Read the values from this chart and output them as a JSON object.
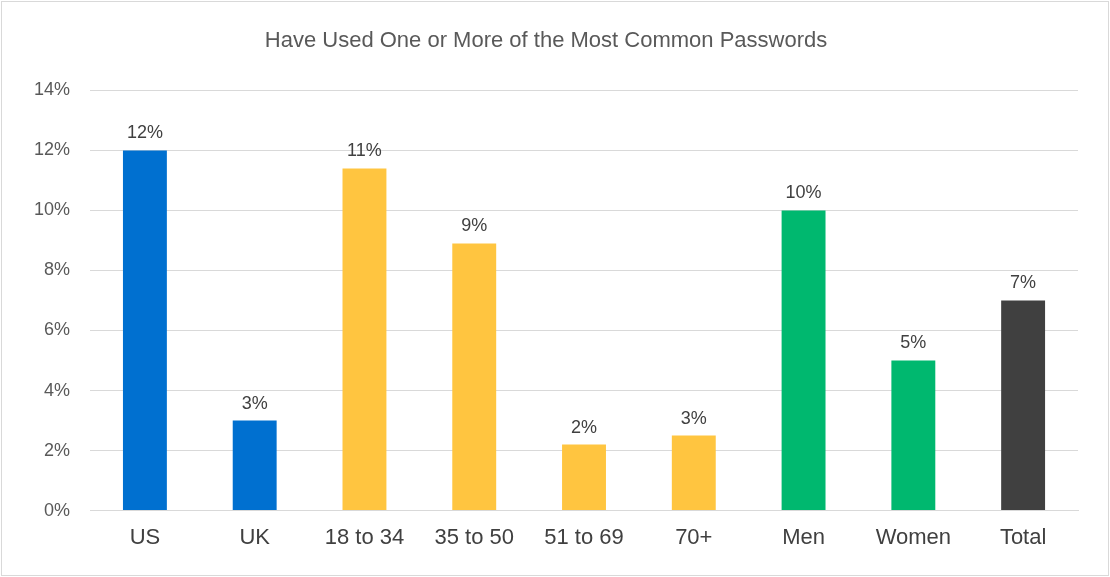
{
  "chart_data": {
    "type": "bar",
    "title": "Have Used One or More of the Most Common Passwords",
    "categories": [
      "US",
      "UK",
      "18 to 34",
      "35 to 50",
      "51 to 69",
      "70+",
      "Men",
      "Women",
      "Total"
    ],
    "values": [
      12,
      3,
      11.4,
      8.9,
      2.2,
      2.5,
      10,
      5,
      7
    ],
    "colors": [
      "#0070d0",
      "#0070d0",
      "#ffc540",
      "#ffc540",
      "#ffc540",
      "#ffc540",
      "#00b86f",
      "#00b86f",
      "#404040"
    ],
    "value_labels": [
      "12%",
      "3%",
      "11%",
      "9%",
      "2%",
      "3%",
      "10%",
      "5%",
      "7%"
    ],
    "ylim": [
      0,
      14
    ],
    "yticks": [
      {
        "value": 0,
        "label": "0%"
      },
      {
        "value": 2,
        "label": "2%"
      },
      {
        "value": 4,
        "label": "4%"
      },
      {
        "value": 6,
        "label": "6%"
      },
      {
        "value": 8,
        "label": "8%"
      },
      {
        "value": 10,
        "label": "10%"
      },
      {
        "value": 12,
        "label": "12%"
      },
      {
        "value": 14,
        "label": "14%"
      }
    ],
    "grid": "y",
    "legend": false
  }
}
